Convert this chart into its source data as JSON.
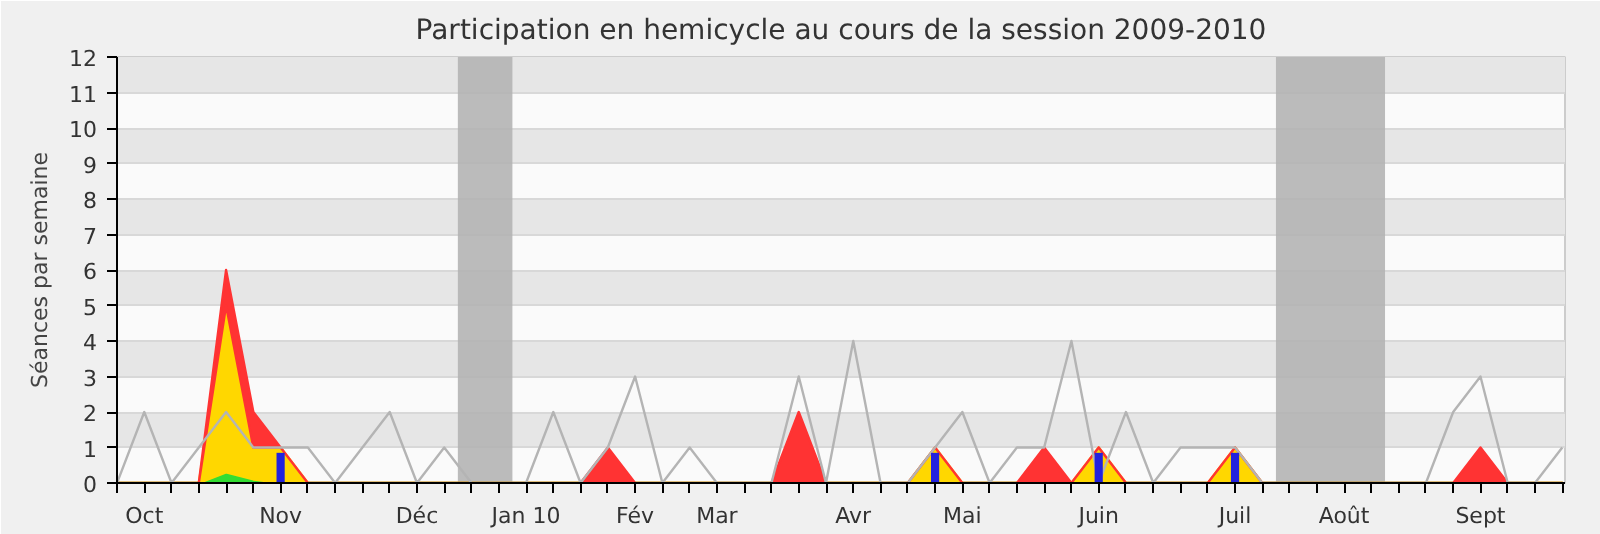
{
  "chart_data": {
    "type": "area",
    "title": "Participation en hemicycle au cours de la session 2009-2010",
    "ylabel": "Séances par semaine",
    "categories": [
      null,
      "Oct",
      null,
      null,
      null,
      null,
      "Nov",
      null,
      null,
      null,
      null,
      "Déc",
      null,
      null,
      null,
      "Jan 10",
      null,
      null,
      null,
      "Fév",
      null,
      null,
      "Mar",
      null,
      null,
      null,
      null,
      "Avr",
      null,
      null,
      null,
      "Mai",
      null,
      null,
      null,
      null,
      "Juin",
      null,
      null,
      null,
      null,
      "Juil",
      null,
      null,
      null,
      "Août",
      null,
      null,
      null,
      null,
      "Sept",
      null,
      null,
      null
    ],
    "stacked": true,
    "series": [
      {
        "color": "#33dd33",
        "values": [
          0,
          0,
          0,
          0,
          0.3,
          0.1,
          0,
          0,
          0,
          0,
          0,
          0,
          0,
          0,
          0,
          0,
          0,
          0,
          0,
          0,
          0,
          0,
          0,
          0,
          0,
          0,
          0,
          0,
          0,
          0,
          0,
          0,
          0,
          0,
          0,
          0,
          0,
          0,
          0,
          0,
          0,
          0,
          0,
          0,
          0,
          0,
          0,
          0,
          0,
          0,
          0,
          0,
          0,
          0
        ]
      },
      {
        "color": "#ffd700",
        "values": [
          0,
          0,
          0,
          0,
          4.7,
          0.9,
          1,
          0,
          0,
          0,
          0,
          0,
          0,
          0,
          0,
          0,
          0,
          0,
          0,
          0,
          0,
          0,
          0,
          0,
          0,
          0,
          0,
          0,
          0,
          0,
          1,
          0,
          0,
          0,
          0,
          0,
          1,
          0,
          0,
          0,
          0,
          1,
          0,
          0,
          0,
          0,
          0,
          0,
          0,
          0,
          0,
          0,
          0,
          0
        ]
      },
      {
        "color": "#ff3333",
        "values": [
          0,
          0,
          0,
          0,
          1,
          1,
          0,
          0,
          0,
          0,
          0,
          0,
          0,
          0,
          0,
          0,
          0,
          0,
          1,
          0,
          0,
          0,
          0,
          0,
          0,
          2,
          0,
          0,
          0,
          0,
          0,
          0,
          0,
          0,
          1,
          0,
          0,
          0,
          0,
          0,
          0,
          0,
          0,
          0,
          0,
          0,
          0,
          0,
          0,
          0,
          1,
          0,
          0,
          0
        ]
      },
      {
        "type": "line",
        "color": "#b4b4b4",
        "values": [
          0,
          2,
          0,
          1,
          2,
          1,
          1,
          1,
          0,
          1,
          2,
          0,
          1,
          0,
          0,
          0,
          2,
          0,
          1,
          3,
          0,
          1,
          0,
          0,
          0,
          3,
          0,
          4,
          0,
          0,
          1,
          2,
          0,
          1,
          1,
          4,
          0,
          2,
          0,
          1,
          1,
          1,
          0,
          0,
          0,
          0,
          0,
          0,
          0,
          2,
          3,
          0,
          0,
          1
        ]
      },
      {
        "type": "bar",
        "color": "#2222dd",
        "values": [
          null,
          null,
          null,
          null,
          null,
          null,
          0.85,
          null,
          null,
          null,
          null,
          null,
          null,
          null,
          null,
          null,
          null,
          null,
          null,
          null,
          null,
          null,
          null,
          null,
          null,
          null,
          null,
          null,
          null,
          null,
          0.85,
          null,
          null,
          null,
          null,
          null,
          0.85,
          null,
          null,
          null,
          null,
          0.85,
          null,
          null,
          null,
          null,
          null,
          null,
          null,
          null,
          null,
          null,
          null,
          null
        ]
      }
    ],
    "ylim": [
      0,
      12
    ],
    "yticks": [
      0,
      1,
      2,
      3,
      4,
      5,
      6,
      7,
      8,
      9,
      10,
      11,
      12
    ],
    "grid": "y"
  }
}
